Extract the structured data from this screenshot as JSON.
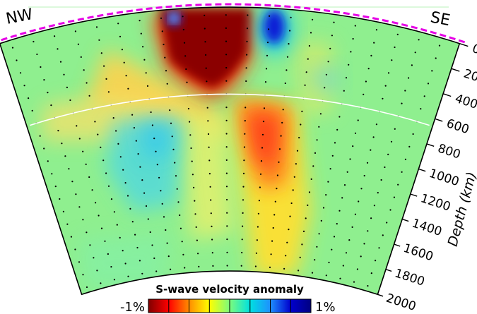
{
  "corner_labels": {
    "left": "NW",
    "right": "SE"
  },
  "depth_axis": {
    "label": "Depth (km)",
    "ticks": [
      "0",
      "200",
      "400",
      "600",
      "800",
      "1000",
      "1200",
      "1400",
      "1600",
      "1800",
      "2000"
    ]
  },
  "colorbar": {
    "title": "S-wave velocity anomaly",
    "min_label": "-1%",
    "max_label": "1%",
    "colors": [
      "#800000",
      "#ff0000",
      "#ff8c00",
      "#ffff00",
      "#7cfc7c",
      "#00e0e0",
      "#1e90ff",
      "#0000cd",
      "#000080"
    ]
  },
  "colors": {
    "background_anomaly": "#8fef8f",
    "surface_dash": "#e600e6",
    "transition_zone_line": "#ffffff"
  }
}
